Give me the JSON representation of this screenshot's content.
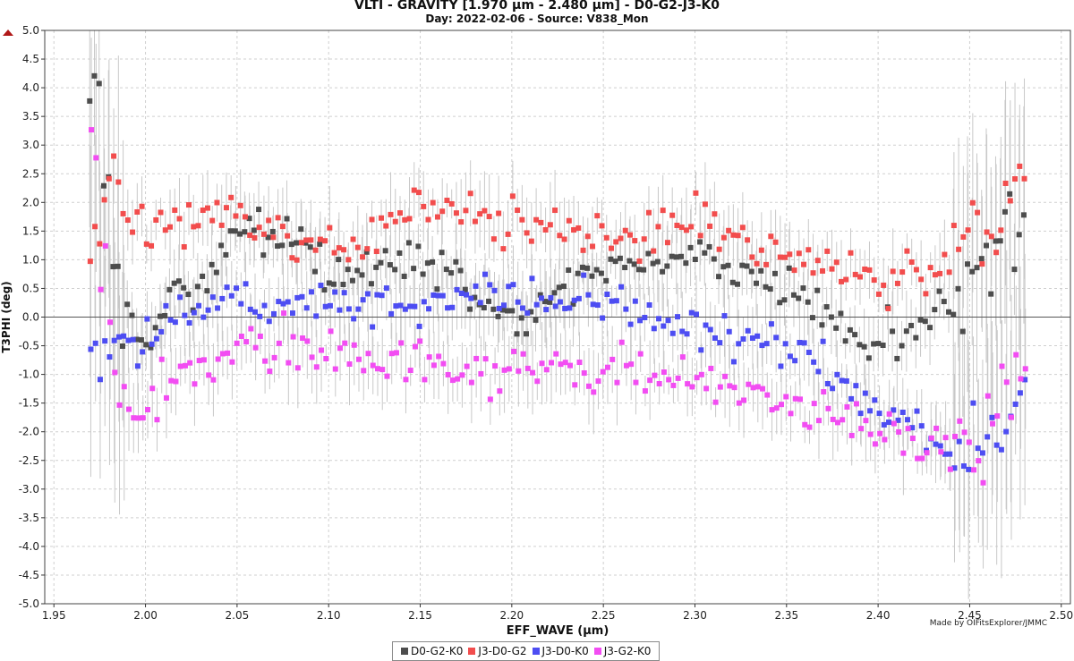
{
  "title_line1": "VLTI - GRAVITY [1.970 µm - 2.480 µm] - D0-G2-J3-K0",
  "title_line2": "Day: 2022-02-06 - Source: V838_Mon",
  "credit": "Made by OIFitsExplorer/JMMC",
  "chart_data": {
    "type": "scatter",
    "title": "VLTI - GRAVITY [1.970 µm - 2.480 µm] - D0-G2-J3-K0",
    "subtitle": "Day: 2022-02-06 - Source: V838_Mon",
    "xlabel": "EFF_WAVE (µm)",
    "ylabel": "T3PHI (deg)",
    "xlim": [
      1.945,
      2.505
    ],
    "ylim": [
      -5.0,
      5.0
    ],
    "xticks": [
      "1.95",
      "2.00",
      "2.05",
      "2.10",
      "2.15",
      "2.20",
      "2.25",
      "2.30",
      "2.35",
      "2.40",
      "2.45",
      "2.50"
    ],
    "xtick_values": [
      1.95,
      2.0,
      2.05,
      2.1,
      2.15,
      2.2,
      2.25,
      2.3,
      2.35,
      2.4,
      2.45,
      2.5
    ],
    "yticks": [
      "5.0",
      "4.5",
      "4.0",
      "3.5",
      "3.0",
      "2.5",
      "2.0",
      "1.5",
      "1.0",
      "0.5",
      "0.0",
      "-0.5",
      "-1.0",
      "-1.5",
      "-2.0",
      "-2.5",
      "-3.0",
      "-3.5",
      "-4.0",
      "-4.5",
      "-5.0"
    ],
    "ytick_values": [
      5.0,
      4.5,
      4.0,
      3.5,
      3.0,
      2.5,
      2.0,
      1.5,
      1.0,
      0.5,
      0.0,
      -0.5,
      -1.0,
      -1.5,
      -2.0,
      -2.5,
      -3.0,
      -3.5,
      -4.0,
      -4.5,
      -5.0
    ],
    "grid": true,
    "legend_position": "bottom-center",
    "x_range": [
      1.97,
      2.48
    ],
    "points_per_series": 200,
    "series": [
      {
        "name": "D0-G2-K0",
        "color": "#4d4d4d",
        "noise": 0.35,
        "knots": [
          [
            1.97,
            4.5
          ],
          [
            1.975,
            3.5
          ],
          [
            1.98,
            2.0
          ],
          [
            1.99,
            0.2
          ],
          [
            2.0,
            -0.3
          ],
          [
            2.02,
            0.4
          ],
          [
            2.05,
            1.2
          ],
          [
            2.08,
            1.5
          ],
          [
            2.1,
            0.6
          ],
          [
            2.15,
            1.0
          ],
          [
            2.2,
            0.0
          ],
          [
            2.25,
            0.8
          ],
          [
            2.3,
            1.1
          ],
          [
            2.35,
            0.4
          ],
          [
            2.4,
            -0.6
          ],
          [
            2.45,
            0.5
          ],
          [
            2.48,
            2.0
          ]
        ]
      },
      {
        "name": "J3-D0-G2",
        "color": "#f24d4d",
        "noise": 0.35,
        "knots": [
          [
            1.97,
            1.0
          ],
          [
            1.98,
            2.2
          ],
          [
            2.0,
            1.5
          ],
          [
            2.05,
            1.8
          ],
          [
            2.1,
            1.0
          ],
          [
            2.15,
            2.0
          ],
          [
            2.2,
            1.6
          ],
          [
            2.25,
            1.4
          ],
          [
            2.3,
            1.6
          ],
          [
            2.35,
            1.0
          ],
          [
            2.4,
            0.6
          ],
          [
            2.45,
            1.0
          ],
          [
            2.48,
            2.5
          ]
        ]
      },
      {
        "name": "J3-D0-K0",
        "color": "#4d4df2",
        "noise": 0.35,
        "knots": [
          [
            1.97,
            -0.5
          ],
          [
            1.99,
            -0.6
          ],
          [
            2.02,
            0.1
          ],
          [
            2.05,
            0.4
          ],
          [
            2.1,
            0.2
          ],
          [
            2.15,
            0.3
          ],
          [
            2.2,
            0.4
          ],
          [
            2.25,
            0.3
          ],
          [
            2.3,
            -0.2
          ],
          [
            2.35,
            -0.6
          ],
          [
            2.4,
            -1.5
          ],
          [
            2.45,
            -2.5
          ],
          [
            2.48,
            -1.5
          ]
        ]
      },
      {
        "name": "J3-G2-K0",
        "color": "#f24df2",
        "noise": 0.35,
        "knots": [
          [
            1.97,
            3.0
          ],
          [
            1.975,
            1.0
          ],
          [
            1.99,
            -1.8
          ],
          [
            2.01,
            -1.2
          ],
          [
            2.05,
            -0.5
          ],
          [
            2.1,
            -0.6
          ],
          [
            2.15,
            -0.8
          ],
          [
            2.2,
            -0.9
          ],
          [
            2.25,
            -0.9
          ],
          [
            2.3,
            -1.0
          ],
          [
            2.35,
            -1.5
          ],
          [
            2.4,
            -2.0
          ],
          [
            2.45,
            -2.5
          ],
          [
            2.48,
            -0.5
          ]
        ]
      }
    ]
  }
}
